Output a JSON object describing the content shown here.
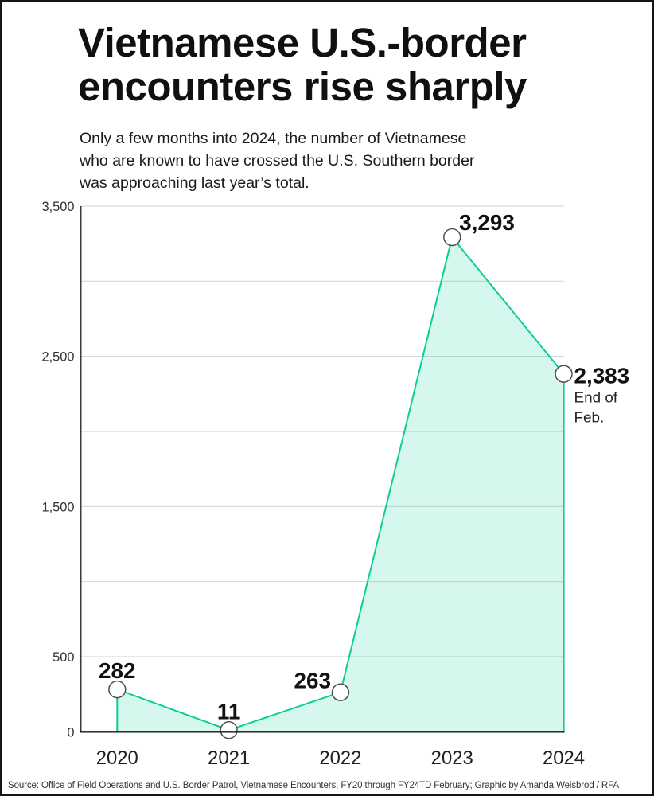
{
  "header": {
    "title_lines": [
      "Vietnamese U.S.-border",
      "encounters rise sharply"
    ],
    "subtitle_lines": [
      "Only a few months into 2024, the number of Vietnamese",
      "who are known to have crossed the U.S. Southern border",
      "was approaching last year’s total."
    ]
  },
  "chart_data": {
    "type": "area",
    "title": "Vietnamese U.S.-border encounters rise sharply",
    "categories": [
      "2020",
      "2021",
      "2022",
      "2023",
      "2024"
    ],
    "values": [
      282,
      11,
      263,
      3293,
      2383
    ],
    "value_labels": [
      "282",
      "11",
      "263",
      "3,293",
      "2,383"
    ],
    "final_point_annotation_lines": [
      "End of",
      "Feb."
    ],
    "xlabel": "",
    "ylabel": "",
    "ylim": [
      0,
      3500
    ],
    "grid": true,
    "grid_interval": 500,
    "yticks": [
      {
        "value": 3500,
        "label": "3,500"
      },
      {
        "value": 2500,
        "label": "2,500"
      },
      {
        "value": 1500,
        "label": "1,500"
      },
      {
        "value": 500,
        "label": "500"
      },
      {
        "value": 0,
        "label": "0"
      }
    ],
    "legend": null,
    "colors": {
      "line": "#0bcd96",
      "area_fill": "#0bcd96",
      "area_fill_opacity": 0.17,
      "marker_fill": "#ffffff",
      "marker_stroke": "#4d4d4d",
      "gridline": "#d2d2d2",
      "y_axis": "#3a3a3a",
      "x_axis": "#141414",
      "value_label": "#111111",
      "tick_label": "#333333",
      "x_tick_label": "#1f1f1f",
      "annotation": "#222222"
    }
  },
  "footer": {
    "source": "Source: Office of Field Operations and U.S. Border Patrol, Vietnamese Encounters, FY20 through FY24TD February; Graphic by Amanda Weisbrod / RFA"
  }
}
